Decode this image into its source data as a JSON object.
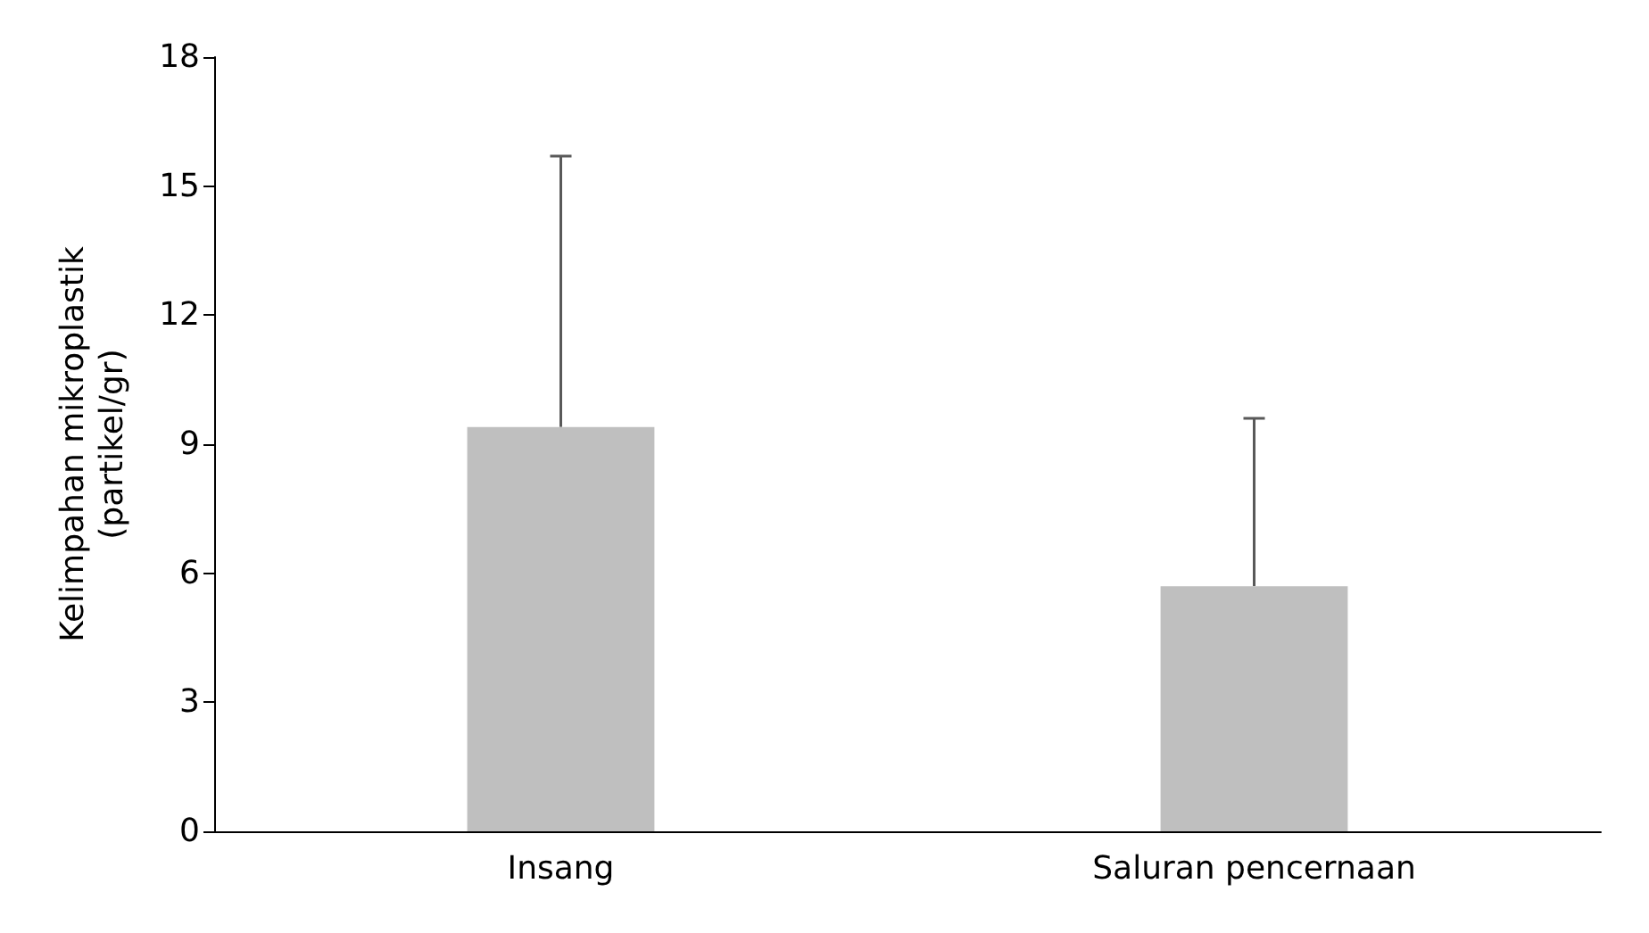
{
  "chart_data": {
    "type": "bar",
    "ylabel": "Kelimpahan mikroplastik\n(partikel/gr)",
    "categories": [
      "Insang",
      "Saluran pencernaan"
    ],
    "values": [
      9.4,
      5.7
    ],
    "errors": [
      [
        9.4,
        15.7
      ],
      [
        5.7,
        9.6
      ]
    ],
    "color": "#bfbfbf",
    "ylim": [
      0,
      18
    ],
    "yticks": [
      0,
      3,
      6,
      9,
      12,
      15,
      18
    ],
    "grid": false
  }
}
